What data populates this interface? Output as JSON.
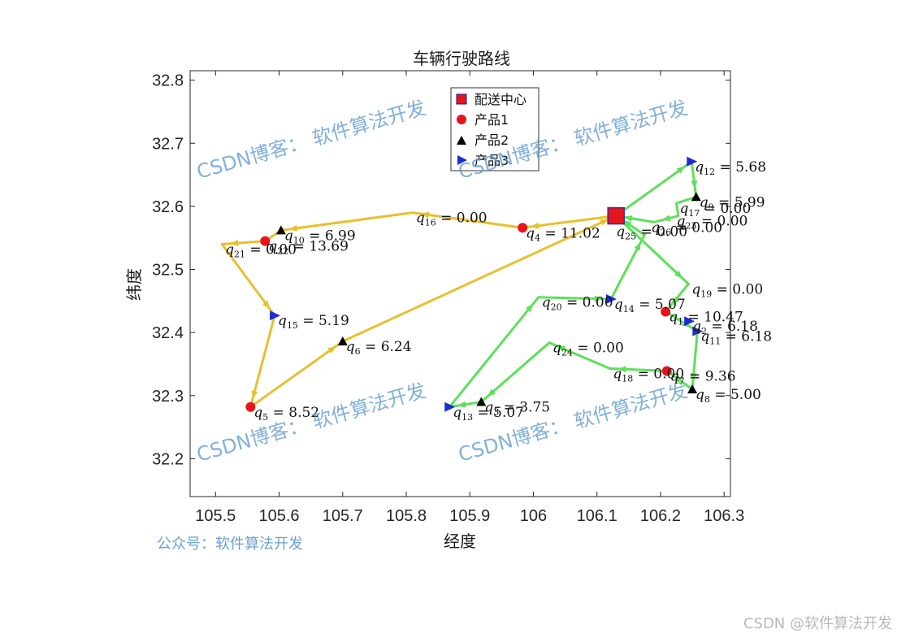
{
  "chart_data": {
    "type": "line",
    "title": "车辆行驶路线",
    "xlabel": "经度",
    "ylabel": "纬度",
    "xlim": [
      105.46,
      106.31
    ],
    "ylim": [
      32.14,
      32.815
    ],
    "xticks": [
      105.5,
      105.6,
      105.7,
      105.8,
      105.9,
      106,
      106.1,
      106.2,
      106.3
    ],
    "xtick_labels": [
      "105.5",
      "105.6",
      "105.7",
      "105.8",
      "105.9",
      "106",
      "106.1",
      "106.2",
      "106.3"
    ],
    "yticks": [
      32.2,
      32.3,
      32.4,
      32.5,
      32.6,
      32.7,
      32.8
    ],
    "ytick_labels": [
      "32.2",
      "32.3",
      "32.4",
      "32.5",
      "32.6",
      "32.7",
      "32.8"
    ],
    "grid": false,
    "legend_placement": "top-center",
    "legend": [
      {
        "label": "配送中心",
        "marker": "square",
        "color": "#e8141c"
      },
      {
        "label": "产品1",
        "marker": "circle",
        "color": "#e8141c"
      },
      {
        "label": "产品2",
        "marker": "triangle-up",
        "color": "#000000"
      },
      {
        "label": "产品3",
        "marker": "triangle-right",
        "color": "#1f2bd6"
      }
    ],
    "depot": {
      "x": 106.13,
      "y": 32.585
    },
    "points": [
      {
        "id": "1",
        "x": 106.208,
        "y": 32.433,
        "type": 1,
        "value": "10.47"
      },
      {
        "id": "2",
        "x": 106.245,
        "y": 32.418,
        "type": 3,
        "value": "6.18"
      },
      {
        "id": "4",
        "x": 105.983,
        "y": 32.566,
        "type": 1,
        "value": "11.02"
      },
      {
        "id": "5",
        "x": 105.555,
        "y": 32.282,
        "type": 1,
        "value": "8.52"
      },
      {
        "id": "6",
        "x": 105.7,
        "y": 32.386,
        "type": 2,
        "value": "6.24"
      },
      {
        "id": "7",
        "x": 106.21,
        "y": 32.339,
        "type": 1,
        "value": "9.36"
      },
      {
        "id": "8",
        "x": 106.25,
        "y": 32.31,
        "type": 2,
        "value": "5.00"
      },
      {
        "id": "9",
        "x": 106.256,
        "y": 32.615,
        "type": 2,
        "value": "5.99"
      },
      {
        "id": "10",
        "x": 105.603,
        "y": 32.562,
        "type": 2,
        "value": "6.99"
      },
      {
        "id": "11",
        "x": 106.258,
        "y": 32.402,
        "type": 3,
        "value": "6.18"
      },
      {
        "id": "12",
        "x": 106.249,
        "y": 32.671,
        "type": 3,
        "value": "5.68"
      },
      {
        "id": "13",
        "x": 105.868,
        "y": 32.282,
        "type": 3,
        "value": "5.07"
      },
      {
        "id": "14",
        "x": 106.122,
        "y": 32.453,
        "type": 3,
        "value": "5.07"
      },
      {
        "id": "15",
        "x": 105.593,
        "y": 32.427,
        "type": 3,
        "value": "5.19"
      },
      {
        "id": "16",
        "x": 105.81,
        "y": 32.59,
        "type": 0,
        "value": "0.00"
      },
      {
        "id": "17",
        "x": 106.225,
        "y": 32.605,
        "type": 0,
        "value": "0.00"
      },
      {
        "id": "18",
        "x": 106.12,
        "y": 32.343,
        "type": 0,
        "value": "0.00"
      },
      {
        "id": "19",
        "x": 106.244,
        "y": 32.477,
        "type": 0,
        "value": "0.00"
      },
      {
        "id": "20",
        "x": 106.008,
        "y": 32.456,
        "type": 0,
        "value": "0.00"
      },
      {
        "id": "21",
        "x": 105.51,
        "y": 32.54,
        "type": 0,
        "value": "0.00"
      },
      {
        "id": "22",
        "x": 105.578,
        "y": 32.545,
        "type": 1,
        "value": "13.69"
      },
      {
        "id": "23",
        "x": 106.22,
        "y": 32.585,
        "type": 0,
        "value": "0.00"
      },
      {
        "id": "24",
        "x": 106.025,
        "y": 32.384,
        "type": 0,
        "value": "0.00"
      },
      {
        "id": "25",
        "x": 106.125,
        "y": 32.568,
        "type": 0,
        "value": "0.00"
      },
      {
        "id": "3",
        "x": 105.918,
        "y": 32.29,
        "type": 2,
        "value": "3.75"
      },
      {
        "id": "26",
        "x": 106.18,
        "y": 32.575,
        "type": 0,
        "value": "0.00"
      }
    ],
    "series": [
      {
        "color": "#e8c02e",
        "route": [
          [
            106.13,
            32.585
          ],
          [
            105.983,
            32.566
          ],
          [
            105.81,
            32.59
          ],
          [
            105.603,
            32.562
          ],
          [
            105.578,
            32.545
          ],
          [
            105.51,
            32.54
          ],
          [
            105.593,
            32.427
          ],
          [
            105.555,
            32.282
          ],
          [
            105.7,
            32.386
          ],
          [
            106.13,
            32.585
          ]
        ]
      },
      {
        "color": "#5ee05a",
        "route": [
          [
            106.13,
            32.585
          ],
          [
            106.249,
            32.671
          ],
          [
            106.256,
            32.615
          ],
          [
            106.225,
            32.605
          ],
          [
            106.228,
            32.585
          ],
          [
            106.19,
            32.575
          ],
          [
            106.13,
            32.585
          ],
          [
            106.244,
            32.477
          ],
          [
            106.208,
            32.433
          ],
          [
            106.258,
            32.402
          ],
          [
            106.25,
            32.31
          ],
          [
            106.21,
            32.339
          ],
          [
            106.12,
            32.343
          ],
          [
            106.025,
            32.384
          ],
          [
            105.918,
            32.29
          ],
          [
            105.868,
            32.282
          ],
          [
            106.008,
            32.456
          ],
          [
            106.122,
            32.453
          ],
          [
            106.175,
            32.555
          ],
          [
            106.13,
            32.585
          ]
        ]
      }
    ]
  },
  "watermarks": [
    {
      "text": "CSDN博客：  软件算法开发"
    },
    {
      "text": "CSDN博客：  软件算法开发"
    },
    {
      "text": "CSDN博客：  软件算法开发"
    },
    {
      "text": "CSDN博客：  软件算法开发"
    }
  ],
  "footer_left": "公众号：软件算法开发",
  "footer_right": "CSDN @软件算法开发"
}
